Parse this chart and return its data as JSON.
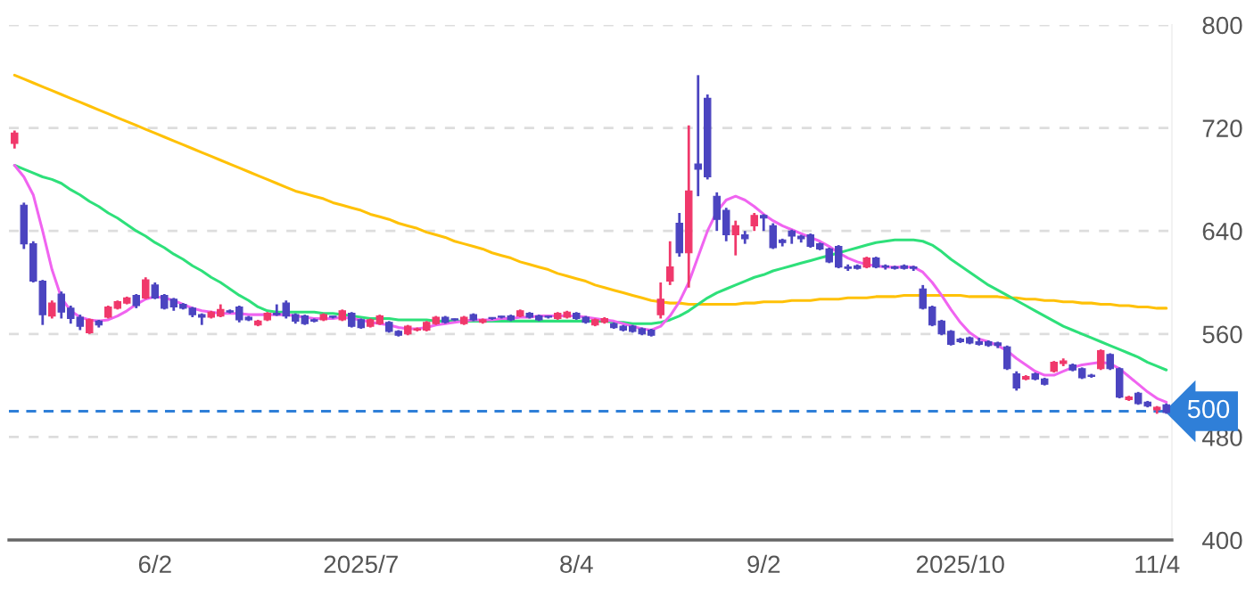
{
  "chart_data": {
    "type": "candlestick",
    "categories": [
      null,
      null,
      null,
      null,
      null,
      null,
      null,
      null,
      null,
      null,
      null,
      null,
      null,
      null,
      null,
      "6/2",
      null,
      null,
      null,
      null,
      null,
      null,
      null,
      null,
      null,
      null,
      null,
      null,
      null,
      null,
      null,
      null,
      null,
      null,
      null,
      null,
      null,
      "2025/7",
      null,
      null,
      null,
      null,
      null,
      null,
      null,
      null,
      null,
      null,
      null,
      null,
      null,
      null,
      null,
      null,
      null,
      null,
      null,
      null,
      null,
      null,
      "8/4",
      null,
      null,
      null,
      null,
      null,
      null,
      null,
      null,
      null,
      null,
      null,
      null,
      null,
      null,
      null,
      null,
      null,
      null,
      null,
      "9/2",
      null,
      null,
      null,
      null,
      null,
      null,
      null,
      null,
      null,
      null,
      null,
      null,
      null,
      null,
      null,
      null,
      null,
      null,
      null,
      null,
      "2025/10",
      null,
      null,
      null,
      null,
      null,
      null,
      null,
      null,
      null,
      null,
      null,
      null,
      null,
      null,
      null,
      null,
      null,
      null,
      null,
      null,
      "11/4",
      null
    ],
    "ohlc": [
      [
        708,
        718,
        704,
        716
      ],
      [
        660,
        662,
        626,
        630
      ],
      [
        630,
        632,
        600,
        601
      ],
      [
        601,
        602,
        567,
        575
      ],
      [
        574,
        586,
        572,
        584
      ],
      [
        591,
        593,
        572,
        577
      ],
      [
        580,
        582,
        568,
        572
      ],
      [
        573,
        575,
        563,
        566
      ],
      [
        561,
        572,
        560,
        571
      ],
      [
        570,
        571,
        565,
        567
      ],
      [
        573,
        582,
        572,
        581
      ],
      [
        580,
        586,
        579,
        585
      ],
      [
        584,
        589,
        583,
        588
      ],
      [
        590,
        591,
        580,
        582
      ],
      [
        588,
        604,
        587,
        602
      ],
      [
        598,
        600,
        587,
        588
      ],
      [
        590,
        591,
        579,
        580
      ],
      [
        587,
        588,
        578,
        581
      ],
      [
        583,
        584,
        579,
        580
      ],
      [
        580,
        581,
        573,
        575
      ],
      [
        575,
        576,
        567,
        573
      ],
      [
        573,
        578,
        572,
        577
      ],
      [
        574,
        583,
        573,
        579
      ],
      [
        578,
        579,
        576,
        577
      ],
      [
        581,
        582,
        569,
        571
      ],
      [
        573,
        574,
        570,
        571
      ],
      [
        567,
        571,
        566,
        570
      ],
      [
        571,
        577,
        570,
        576
      ],
      [
        576,
        583,
        574,
        575
      ],
      [
        584,
        586,
        572,
        574
      ],
      [
        575,
        576,
        568,
        570
      ],
      [
        574,
        575,
        567,
        568
      ],
      [
        571,
        572,
        569,
        570
      ],
      [
        571,
        576,
        570,
        575
      ],
      [
        573,
        574,
        572,
        573
      ],
      [
        571,
        579,
        570,
        578
      ],
      [
        576,
        577,
        565,
        566
      ],
      [
        571,
        572,
        564,
        565
      ],
      [
        566,
        572,
        565,
        571
      ],
      [
        568,
        575,
        567,
        574
      ],
      [
        569,
        570,
        561,
        562
      ],
      [
        562,
        563,
        558,
        559
      ],
      [
        560,
        567,
        559,
        566
      ],
      [
        563,
        565,
        562,
        564
      ],
      [
        563,
        570,
        562,
        569
      ],
      [
        568,
        574,
        567,
        573
      ],
      [
        573,
        574,
        568,
        569
      ],
      [
        571,
        572,
        570,
        571
      ],
      [
        568,
        574,
        567,
        573
      ],
      [
        575,
        576,
        570,
        571
      ],
      [
        569,
        572,
        568,
        571
      ],
      [
        572,
        573,
        571,
        572
      ],
      [
        573,
        574,
        572,
        573
      ],
      [
        574,
        575,
        570,
        571
      ],
      [
        574,
        579,
        573,
        578
      ],
      [
        576,
        577,
        572,
        573
      ],
      [
        574,
        575,
        570,
        571
      ],
      [
        573,
        574,
        572,
        573
      ],
      [
        572,
        577,
        571,
        576
      ],
      [
        573,
        578,
        572,
        577
      ],
      [
        576,
        577,
        571,
        572
      ],
      [
        573,
        574,
        568,
        569
      ],
      [
        567,
        572,
        566,
        571
      ],
      [
        569,
        573,
        568,
        572
      ],
      [
        568,
        569,
        564,
        565
      ],
      [
        566,
        567,
        562,
        563
      ],
      [
        566,
        567,
        561,
        562
      ],
      [
        564,
        565,
        559,
        560
      ],
      [
        563,
        564,
        558,
        559
      ],
      [
        575,
        600,
        572,
        587
      ],
      [
        601,
        632,
        598,
        612
      ],
      [
        646,
        654,
        620,
        623
      ],
      [
        623,
        722,
        596,
        671
      ],
      [
        692,
        761,
        667,
        688
      ],
      [
        743,
        746,
        680,
        682
      ],
      [
        667,
        670,
        640,
        649
      ],
      [
        656,
        658,
        632,
        637
      ],
      [
        637,
        648,
        621,
        644
      ],
      [
        637,
        640,
        630,
        634
      ],
      [
        644,
        654,
        640,
        652
      ],
      [
        652,
        653,
        640,
        650
      ],
      [
        644,
        646,
        626,
        627
      ],
      [
        633,
        634,
        628,
        631
      ],
      [
        640,
        641,
        630,
        636
      ],
      [
        636,
        637,
        631,
        634
      ],
      [
        637,
        638,
        627,
        628
      ],
      [
        630,
        631,
        625,
        626
      ],
      [
        626,
        627,
        615,
        616
      ],
      [
        628,
        629,
        611,
        612
      ],
      [
        612,
        614,
        609,
        611
      ],
      [
        613,
        614,
        610,
        611
      ],
      [
        612,
        620,
        611,
        619
      ],
      [
        619,
        620,
        611,
        612
      ],
      [
        613,
        614,
        610,
        612
      ],
      [
        612,
        613,
        610,
        611
      ],
      [
        613,
        614,
        610,
        611
      ],
      [
        612,
        613,
        609,
        611
      ],
      [
        595,
        598,
        579,
        580
      ],
      [
        581,
        582,
        566,
        567
      ],
      [
        570,
        571,
        559,
        560
      ],
      [
        562,
        563,
        551,
        552
      ],
      [
        556,
        557,
        553,
        554
      ],
      [
        557,
        558,
        552,
        553
      ],
      [
        554,
        557,
        551,
        552
      ],
      [
        554,
        555,
        550,
        551
      ],
      [
        553,
        554,
        549,
        551
      ],
      [
        550,
        551,
        532,
        533
      ],
      [
        529,
        531,
        516,
        518
      ],
      [
        525,
        528,
        524,
        527
      ],
      [
        529,
        530,
        524,
        525
      ],
      [
        525,
        526,
        520,
        521
      ],
      [
        531,
        539,
        530,
        538
      ],
      [
        537,
        541,
        535,
        539
      ],
      [
        536,
        537,
        531,
        532
      ],
      [
        533,
        534,
        525,
        526
      ],
      [
        528,
        529,
        526,
        527
      ],
      [
        533,
        548,
        532,
        547
      ],
      [
        544,
        545,
        532,
        533
      ],
      [
        533,
        534,
        510,
        511
      ],
      [
        509,
        512,
        508,
        511
      ],
      [
        514,
        515,
        505,
        506
      ],
      [
        507,
        508,
        503,
        504
      ],
      [
        501,
        504,
        498,
        503
      ],
      [
        505,
        506,
        498,
        499
      ]
    ],
    "colors": [
      "#f0386b",
      "#4b44c0",
      "#4b44c0",
      "#4b44c0",
      "#f0386b",
      "#4b44c0",
      "#4b44c0",
      "#4b44c0",
      "#f0386b",
      "#4b44c0",
      "#f0386b",
      "#f0386b",
      "#f0386b",
      "#4b44c0",
      "#f0386b",
      "#4b44c0",
      "#4b44c0",
      "#4b44c0",
      "#4b44c0",
      "#4b44c0",
      "#4b44c0",
      "#f0386b",
      "#f0386b",
      "#4b44c0",
      "#4b44c0",
      "#4b44c0",
      "#f0386b",
      "#f0386b",
      "#4b44c0",
      "#4b44c0",
      "#4b44c0",
      "#4b44c0",
      "#4b44c0",
      "#f0386b",
      "#4b44c0",
      "#f0386b",
      "#4b44c0",
      "#4b44c0",
      "#f0386b",
      "#f0386b",
      "#4b44c0",
      "#4b44c0",
      "#f0386b",
      "#f0386b",
      "#f0386b",
      "#f0386b",
      "#4b44c0",
      "#4b44c0",
      "#f0386b",
      "#4b44c0",
      "#f0386b",
      "#4b44c0",
      "#4b44c0",
      "#4b44c0",
      "#f0386b",
      "#4b44c0",
      "#4b44c0",
      "#4b44c0",
      "#f0386b",
      "#f0386b",
      "#4b44c0",
      "#4b44c0",
      "#f0386b",
      "#f0386b",
      "#4b44c0",
      "#4b44c0",
      "#4b44c0",
      "#4b44c0",
      "#4b44c0",
      "#f0386b",
      "#f0386b",
      "#4b44c0",
      "#f0386b",
      "#4b44c0",
      "#4b44c0",
      "#4b44c0",
      "#4b44c0",
      "#f0386b",
      "#4b44c0",
      "#f0386b",
      "#4b44c0",
      "#4b44c0",
      "#4b44c0",
      "#4b44c0",
      "#4b44c0",
      "#4b44c0",
      "#4b44c0",
      "#4b44c0",
      "#4b44c0",
      "#4b44c0",
      "#4b44c0",
      "#f0386b",
      "#4b44c0",
      "#4b44c0",
      "#4b44c0",
      "#4b44c0",
      "#4b44c0",
      "#4b44c0",
      "#4b44c0",
      "#4b44c0",
      "#4b44c0",
      "#4b44c0",
      "#4b44c0",
      "#4b44c0",
      "#4b44c0",
      "#4b44c0",
      "#4b44c0",
      "#4b44c0",
      "#f0386b",
      "#4b44c0",
      "#4b44c0",
      "#f0386b",
      "#f0386b",
      "#4b44c0",
      "#4b44c0",
      "#4b44c0",
      "#f0386b",
      "#4b44c0",
      "#4b44c0",
      "#f0386b",
      "#4b44c0",
      "#4b44c0",
      "#f0386b",
      "#4b44c0"
    ],
    "series": [
      {
        "type": "line",
        "color": "#ffc107",
        "values": [
          761,
          758,
          755,
          752,
          749,
          746,
          743,
          740,
          737,
          734,
          731,
          728,
          725,
          722,
          719,
          716,
          713,
          710,
          707,
          704,
          701,
          698,
          695,
          692,
          689,
          686,
          683,
          680,
          677,
          674,
          671,
          669,
          667,
          665,
          662,
          660,
          658,
          656,
          653,
          651,
          649,
          646,
          644,
          642,
          639,
          637,
          635,
          632,
          630,
          628,
          626,
          623,
          621,
          619,
          616,
          614,
          612,
          610,
          607,
          605,
          603,
          601,
          598,
          596,
          594,
          592,
          590,
          588,
          586,
          585,
          584,
          584,
          583,
          583,
          583,
          583,
          583,
          583,
          584,
          584,
          585,
          585,
          585,
          586,
          586,
          586,
          587,
          587,
          587,
          588,
          588,
          588,
          589,
          589,
          589,
          590,
          590,
          590,
          590,
          590,
          590,
          590,
          589,
          589,
          589,
          589,
          588,
          588,
          587,
          587,
          586,
          586,
          585,
          585,
          584,
          584,
          583,
          583,
          582,
          582,
          581,
          581,
          580,
          580
        ]
      },
      {
        "type": "line",
        "color": "#2ee07a",
        "values": [
          691,
          688,
          685,
          682,
          680,
          677,
          672,
          668,
          663,
          659,
          654,
          650,
          645,
          640,
          636,
          631,
          627,
          622,
          618,
          613,
          609,
          604,
          600,
          595,
          590,
          586,
          581,
          578,
          577,
          577,
          577,
          577,
          577,
          576,
          576,
          575,
          574,
          573,
          572,
          572,
          572,
          571,
          571,
          571,
          571,
          570,
          570,
          570,
          570,
          570,
          570,
          570,
          570,
          570,
          570,
          570,
          570,
          570,
          570,
          570,
          570,
          570,
          570,
          570,
          569,
          569,
          568,
          568,
          568,
          569,
          571,
          574,
          578,
          583,
          588,
          592,
          595,
          598,
          601,
          604,
          606,
          609,
          611,
          613,
          615,
          617,
          619,
          621,
          623,
          625,
          627,
          629,
          631,
          632,
          633,
          633,
          633,
          632,
          629,
          624,
          618,
          613,
          608,
          603,
          598,
          594,
          590,
          586,
          582,
          578,
          574,
          570,
          566,
          563,
          560,
          557,
          554,
          551,
          548,
          545,
          542,
          538,
          535,
          532
        ]
      },
      {
        "type": "line",
        "color": "#f064f0",
        "values": [
          691,
          682,
          668,
          640,
          610,
          588,
          578,
          573,
          571,
          570,
          571,
          574,
          578,
          583,
          587,
          589,
          588,
          586,
          583,
          580,
          578,
          577,
          576,
          576,
          576,
          575,
          575,
          575,
          575,
          575,
          574,
          573,
          572,
          572,
          572,
          573,
          572,
          571,
          569,
          568,
          567,
          565,
          564,
          564,
          565,
          567,
          568,
          569,
          570,
          571,
          571,
          571,
          572,
          572,
          573,
          573,
          574,
          574,
          574,
          574,
          574,
          573,
          572,
          571,
          570,
          568,
          566,
          564,
          563,
          566,
          574,
          585,
          600,
          620,
          640,
          655,
          664,
          667,
          664,
          659,
          653,
          648,
          644,
          641,
          638,
          635,
          632,
          628,
          623,
          619,
          616,
          614,
          613,
          612,
          612,
          612,
          612,
          608,
          600,
          590,
          579,
          569,
          561,
          556,
          554,
          551,
          547,
          541,
          536,
          531,
          528,
          528,
          531,
          534,
          536,
          537,
          538,
          537,
          533,
          527,
          521,
          515,
          510,
          507
        ]
      }
    ],
    "ylim": [
      400,
      800
    ],
    "yticks": [
      400,
      480,
      560,
      640,
      720,
      800
    ],
    "grid": "y",
    "ref_lines": [
      {
        "axis": "y",
        "value": 500,
        "label": "500",
        "color": "#2f7fd8",
        "line_style": "dashed"
      }
    ]
  }
}
